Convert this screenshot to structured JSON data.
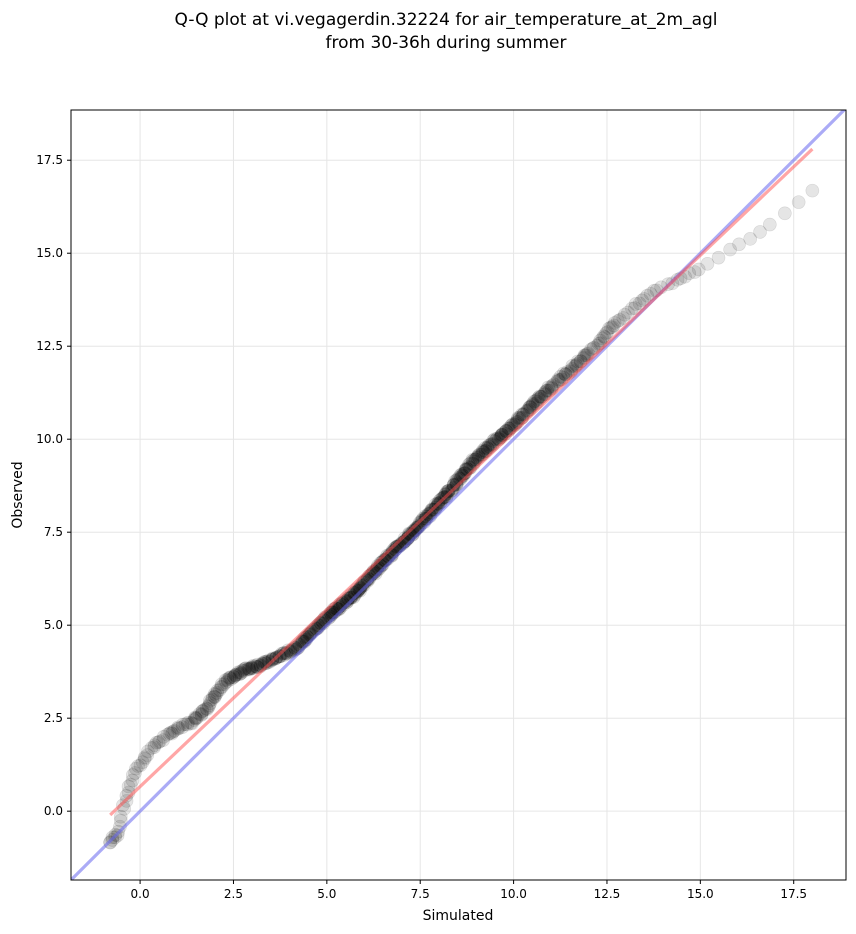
{
  "chart_data": {
    "type": "scatter",
    "title_lines": [
      "Q-Q plot at vi.vegagerdin.32224 for air_temperature_at_2m_agl",
      "from 30-36h during summer"
    ],
    "xlabel": "Simulated",
    "ylabel": "Observed",
    "xlim": [
      -1.85,
      18.9
    ],
    "ylim": [
      -1.85,
      18.85
    ],
    "xticks": [
      0.0,
      2.5,
      5.0,
      7.5,
      10.0,
      12.5,
      15.0,
      17.5
    ],
    "yticks": [
      0.0,
      2.5,
      5.0,
      7.5,
      10.0,
      12.5,
      15.0,
      17.5
    ],
    "xtick_labels": [
      "0.0",
      "2.5",
      "5.0",
      "7.5",
      "10.0",
      "12.5",
      "15.0",
      "17.5"
    ],
    "ytick_labels": [
      "0.0",
      "2.5",
      "5.0",
      "7.5",
      "10.0",
      "12.5",
      "15.0",
      "17.5"
    ],
    "grid": true,
    "colors": {
      "points": "#000000",
      "fit_line": "#ff4d4d",
      "identity_line": "#6666ee",
      "grid": "#e6e6e6"
    },
    "reference_lines": [
      {
        "kind": "identity",
        "x": [
          -1.85,
          18.9
        ],
        "y": [
          -1.85,
          18.9
        ]
      },
      {
        "kind": "fit",
        "x": [
          -0.8,
          18.0
        ],
        "y": [
          -0.1,
          17.8
        ]
      }
    ],
    "quantile_knots": [
      [
        0.0,
        -0.8,
        -0.85
      ],
      [
        0.01,
        -0.6,
        -0.6
      ],
      [
        0.02,
        -0.4,
        0.3
      ],
      [
        0.03,
        -0.15,
        1.0
      ],
      [
        0.045,
        0.3,
        1.7
      ],
      [
        0.06,
        0.8,
        2.1
      ],
      [
        0.08,
        1.4,
        2.4
      ],
      [
        0.1,
        1.8,
        2.8
      ],
      [
        0.13,
        2.3,
        3.5
      ],
      [
        0.16,
        2.8,
        3.8
      ],
      [
        0.2,
        3.4,
        4.0
      ],
      [
        0.25,
        4.2,
        4.4
      ],
      [
        0.32,
        5.0,
        5.2
      ],
      [
        0.4,
        5.8,
        5.9
      ],
      [
        0.48,
        6.6,
        6.8
      ],
      [
        0.56,
        7.4,
        7.6
      ],
      [
        0.64,
        8.2,
        8.5
      ],
      [
        0.72,
        9.0,
        9.5
      ],
      [
        0.8,
        10.0,
        10.4
      ],
      [
        0.87,
        11.0,
        11.4
      ],
      [
        0.92,
        12.0,
        12.3
      ],
      [
        0.95,
        12.8,
        13.2
      ],
      [
        0.97,
        13.8,
        14.0
      ],
      [
        0.985,
        15.0,
        14.6
      ],
      [
        0.995,
        16.8,
        15.7
      ],
      [
        1.0,
        18.0,
        16.7
      ]
    ],
    "n_points": 650
  }
}
